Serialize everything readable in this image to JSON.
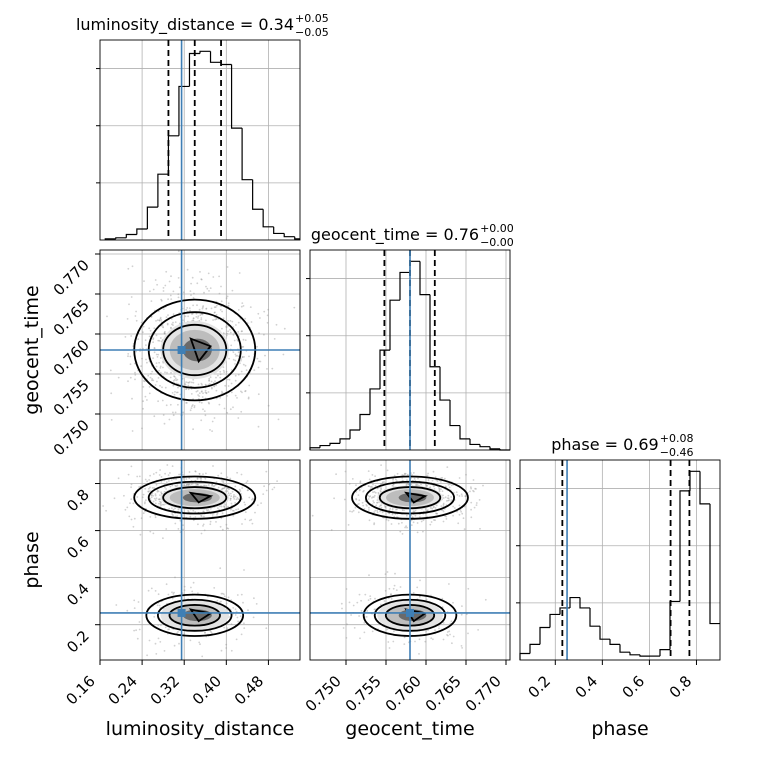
{
  "chart_data": {
    "type": "corner",
    "parameters": [
      "luminosity_distance",
      "geocent_time",
      "phase"
    ],
    "labels": {
      "luminosity_distance": "luminosity_distance",
      "geocent_time": "geocent_time",
      "phase": "phase"
    },
    "titles": [
      {
        "param": "luminosity_distance",
        "text": "luminosity_distance = 0.34",
        "plus": "+0.05",
        "minus": "−0.05"
      },
      {
        "param": "geocent_time",
        "text": "geocent_time = 0.76",
        "plus": "+0.00",
        "minus": "−0.00"
      },
      {
        "param": "phase",
        "text": "phase = 0.69",
        "plus": "+0.08",
        "minus": "−0.46"
      }
    ],
    "ranges": {
      "luminosity_distance": [
        0.16,
        0.54
      ],
      "geocent_time": [
        0.7455,
        0.7705
      ],
      "phase": [
        0.05,
        0.9
      ]
    },
    "ticks": {
      "luminosity_distance": [
        "0.16",
        "0.24",
        "0.32",
        "0.40",
        "0.48"
      ],
      "geocent_time": [
        "0.750",
        "0.755",
        "0.760",
        "0.765",
        "0.770"
      ],
      "phase": [
        "0.2",
        "0.4",
        "0.6",
        "0.8"
      ]
    },
    "truths": {
      "luminosity_distance": 0.315,
      "geocent_time": 0.758,
      "phase": 0.25
    },
    "quantiles": {
      "luminosity_distance": [
        0.29,
        0.34,
        0.39
      ],
      "geocent_time": [
        0.7548,
        0.758,
        0.7611
      ],
      "phase": [
        0.23,
        0.69,
        0.77
      ]
    },
    "histograms": {
      "luminosity_distance": {
        "start": 0.17,
        "width": 0.02,
        "counts": [
          1,
          2,
          5,
          10,
          30,
          60,
          95,
          140,
          170,
          172,
          162,
          160,
          102,
          55,
          28,
          12,
          6,
          3,
          1
        ]
      },
      "geocent_time": {
        "start": 0.7455,
        "width": 0.00125,
        "counts": [
          2,
          4,
          6,
          10,
          18,
          32,
          55,
          90,
          135,
          160,
          170,
          140,
          75,
          45,
          22,
          10,
          5,
          3,
          1,
          0
        ]
      },
      "phase": {
        "start": 0.05,
        "width": 0.0425,
        "counts": [
          5,
          12,
          25,
          35,
          40,
          48,
          40,
          26,
          16,
          12,
          6,
          4,
          3,
          3,
          8,
          45,
          130,
          145,
          120,
          28
        ]
      }
    },
    "pairs": [
      {
        "x": "luminosity_distance",
        "y": "geocent_time"
      },
      {
        "x": "luminosity_distance",
        "y": "phase"
      },
      {
        "x": "geocent_time",
        "y": "phase"
      }
    ],
    "colors": {
      "truth": "#3f7fb5",
      "lines": "#000000",
      "grid": "#b0b0b0",
      "scatter": "#9a9a9a"
    }
  }
}
